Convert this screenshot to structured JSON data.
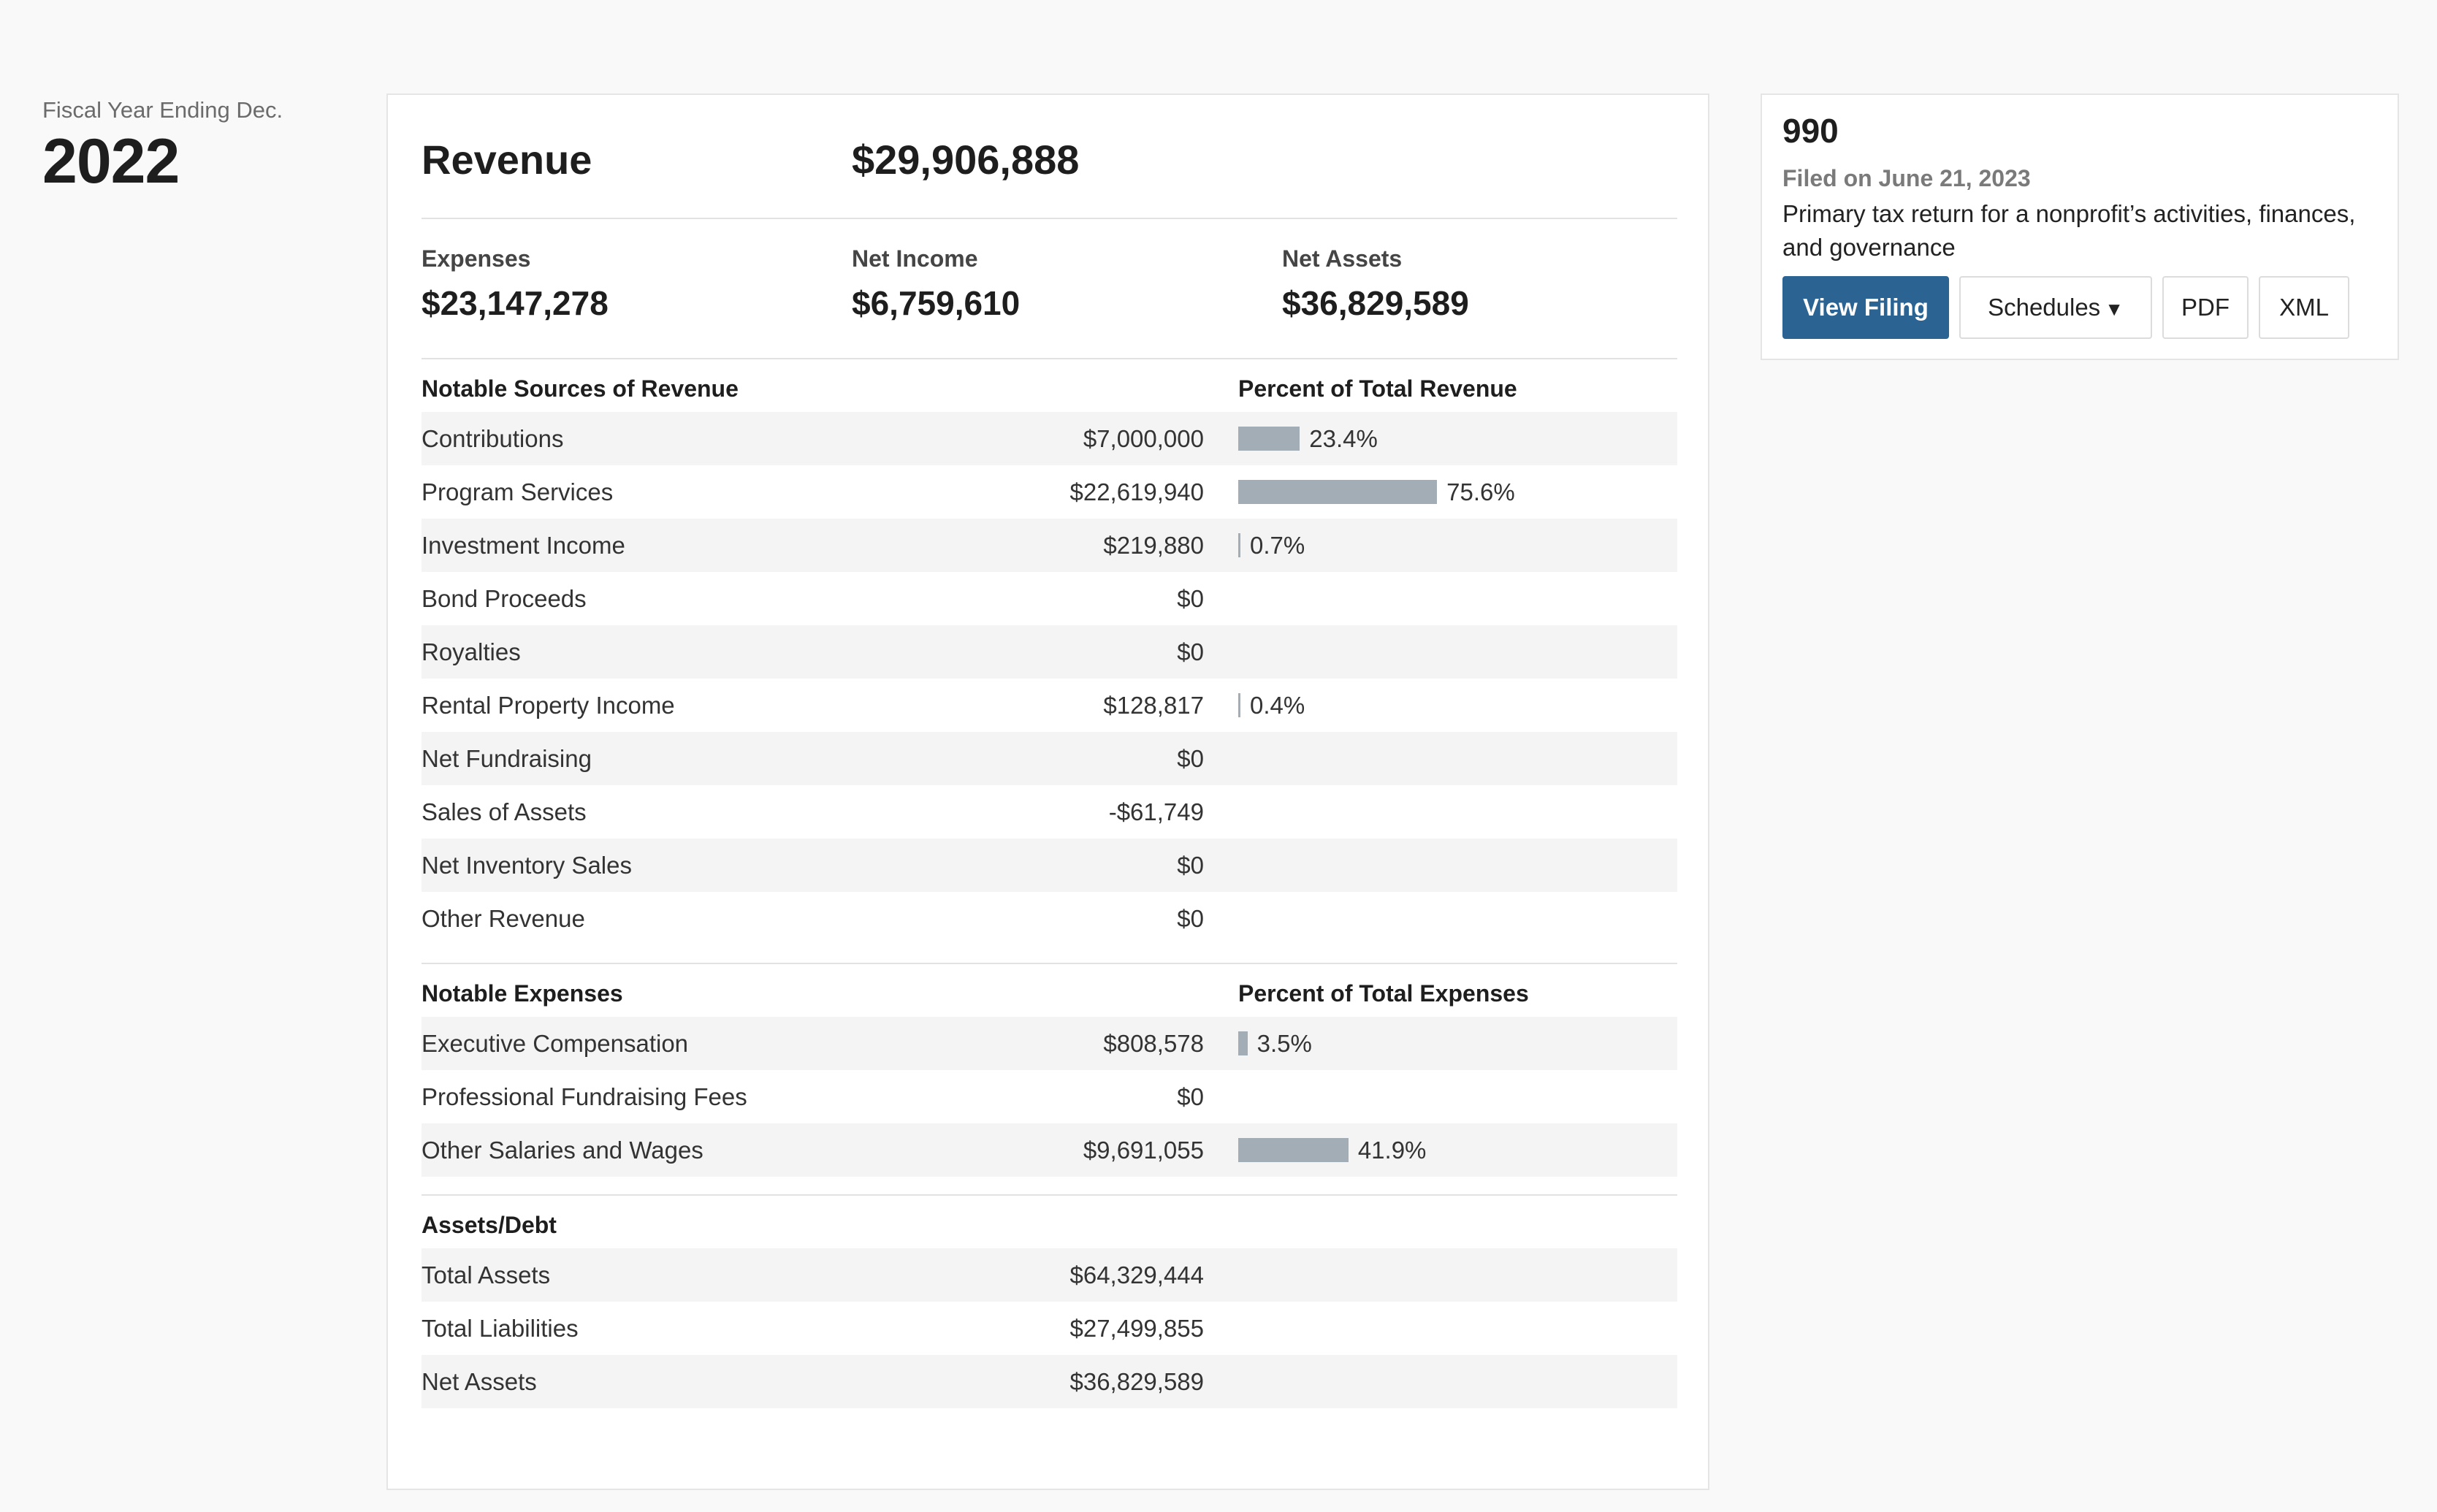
{
  "fiscal": {
    "label": "Fiscal Year Ending Dec.",
    "year": "2022"
  },
  "revenue": {
    "label": "Revenue",
    "value": "$29,906,888"
  },
  "summary": {
    "expenses_label": "Expenses",
    "expenses_value": "$23,147,278",
    "net_income_label": "Net Income",
    "net_income_value": "$6,759,610",
    "net_assets_label": "Net Assets",
    "net_assets_value": "$36,829,589"
  },
  "sources": {
    "heading": "Notable Sources of Revenue",
    "percent_heading": "Percent of Total Revenue",
    "rows": [
      {
        "name": "Contributions",
        "amount": "$7,000,000",
        "percent": 23.4,
        "percent_label": "23.4%"
      },
      {
        "name": "Program Services",
        "amount": "$22,619,940",
        "percent": 75.6,
        "percent_label": "75.6%"
      },
      {
        "name": "Investment Income",
        "amount": "$219,880",
        "percent": 0.7,
        "percent_label": "0.7%"
      },
      {
        "name": "Bond Proceeds",
        "amount": "$0",
        "percent": null,
        "percent_label": ""
      },
      {
        "name": "Royalties",
        "amount": "$0",
        "percent": null,
        "percent_label": ""
      },
      {
        "name": "Rental Property Income",
        "amount": "$128,817",
        "percent": 0.4,
        "percent_label": "0.4%"
      },
      {
        "name": "Net Fundraising",
        "amount": "$0",
        "percent": null,
        "percent_label": ""
      },
      {
        "name": "Sales of Assets",
        "amount": "-$61,749",
        "percent": null,
        "percent_label": ""
      },
      {
        "name": "Net Inventory Sales",
        "amount": "$0",
        "percent": null,
        "percent_label": ""
      },
      {
        "name": "Other Revenue",
        "amount": "$0",
        "percent": null,
        "percent_label": ""
      }
    ]
  },
  "expenses": {
    "heading": "Notable Expenses",
    "percent_heading": "Percent of Total Expenses",
    "rows": [
      {
        "name": "Executive Compensation",
        "amount": "$808,578",
        "percent": 3.5,
        "percent_label": "3.5%"
      },
      {
        "name": "Professional Fundraising Fees",
        "amount": "$0",
        "percent": null,
        "percent_label": ""
      },
      {
        "name": "Other Salaries and Wages",
        "amount": "$9,691,055",
        "percent": 41.9,
        "percent_label": "41.9%"
      }
    ]
  },
  "assets": {
    "heading": "Assets/Debt",
    "rows": [
      {
        "name": "Total Assets",
        "amount": "$64,329,444"
      },
      {
        "name": "Total Liabilities",
        "amount": "$27,499,855"
      },
      {
        "name": "Net Assets",
        "amount": "$36,829,589"
      }
    ]
  },
  "filing": {
    "form": "990",
    "filed_on": "Filed on June 21, 2023",
    "description": "Primary tax return for a nonprofit’s activities, finances, and governance",
    "view_label": "View Filing",
    "schedules_label": "Schedules",
    "pdf_label": "PDF",
    "xml_label": "XML",
    "colors": {
      "primary_button": "#2b6493",
      "bar": "#a3adb6"
    }
  }
}
